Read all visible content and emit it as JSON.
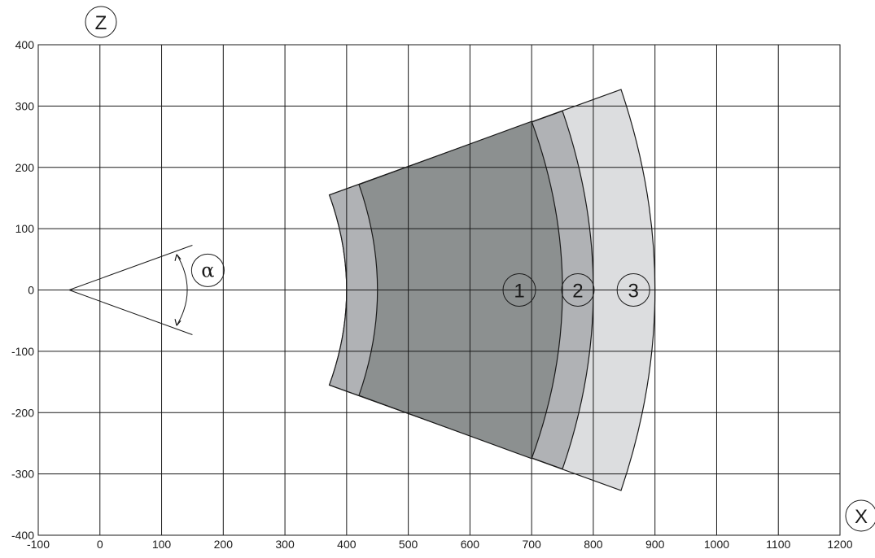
{
  "axes": {
    "x_label": "X",
    "z_label": "Z",
    "x_range": [
      -100,
      1200
    ],
    "z_range": [
      -400,
      400
    ],
    "x_ticks": [
      -100,
      0,
      100,
      200,
      300,
      400,
      500,
      600,
      700,
      800,
      900,
      1000,
      1100,
      1200
    ],
    "z_ticks": [
      400,
      300,
      200,
      100,
      0,
      -100,
      -200,
      -300,
      -400
    ],
    "grid": true
  },
  "angle_indicator": {
    "symbol": "α",
    "apex": [
      -50,
      0
    ],
    "ray_end_upper": [
      150,
      73
    ],
    "ray_end_lower": [
      150,
      -73
    ]
  },
  "zones": [
    {
      "label": "1",
      "fill": "#8c9090",
      "inner_top": [
        420,
        172
      ],
      "inner_mid": [
        450,
        0
      ],
      "outer_top": [
        700,
        275
      ],
      "outer_mid": [
        750,
        0
      ]
    },
    {
      "label": "2",
      "fill": "#b0b2b5",
      "outer_top": [
        750,
        292
      ],
      "outer_mid": [
        800,
        0
      ],
      "near_top": [
        372,
        155
      ],
      "near_mid": [
        400,
        0
      ]
    },
    {
      "label": "3",
      "fill": "#dcdddf",
      "outer_top": [
        845,
        327
      ],
      "outer_mid": [
        900,
        0
      ]
    }
  ],
  "zone_labels": [
    {
      "text": "1",
      "x": 680,
      "z": 0
    },
    {
      "text": "2",
      "x": 775,
      "z": 0
    },
    {
      "text": "3",
      "x": 865,
      "z": 0
    }
  ],
  "colors": {
    "zone1": "#8c9090",
    "zone2": "#b0b2b5",
    "zone3": "#dcdddf",
    "ink": "#1a1a1a"
  }
}
